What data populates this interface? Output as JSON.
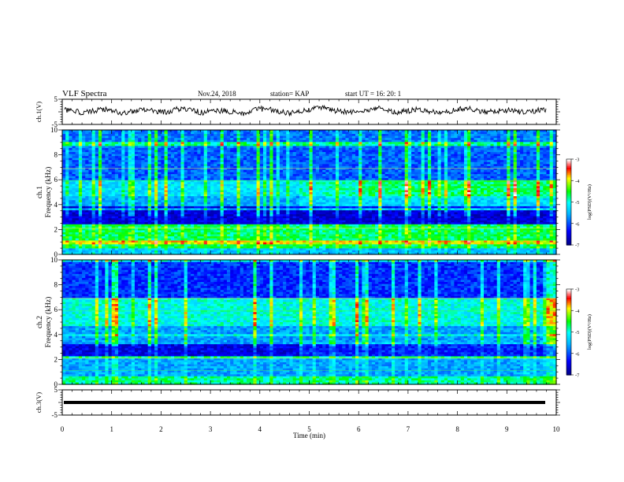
{
  "header": {
    "title": "VLF Spectra",
    "date": "Nov.24, 2018",
    "station": "station= KAP",
    "start_time": "start  UT =   16: 20: 1"
  },
  "chart_data": [
    {
      "type": "line",
      "ylabel": "ch.1(V)",
      "ylim": [
        -5,
        5
      ],
      "yticks": [
        "5",
        "-5"
      ],
      "xlim": [
        0,
        10
      ],
      "series": [
        {
          "values": [
            0.8,
            0.2,
            -0.4,
            0.5,
            1.1,
            0.3,
            -0.6,
            0.1,
            0.9,
            0.4,
            -0.2,
            0.6,
            1.5,
            0.7,
            -0.3,
            0.2,
            0.5,
            0.0,
            -0.8,
            0.4,
            1.2,
            0.9,
            0.1,
            -0.5,
            0.3,
            0.8,
            1.9,
            1.0,
            0.2,
            -0.4,
            0.0,
            0.7,
            1.3,
            0.5,
            -0.2,
            0.4,
            0.9,
            0.3,
            -0.6,
            0.2,
            0.8,
            1.4,
            0.6,
            -0.1,
            0.3,
            0.7,
            0.2,
            -0.3,
            0.5,
            1.0
          ]
        }
      ]
    },
    {
      "type": "heatmap",
      "ylabel": "ch.1\nFrequency (kHz)",
      "ylim": [
        0,
        10
      ],
      "yticks": [
        "0",
        "2",
        "4",
        "6",
        "8",
        "10"
      ],
      "xlim": [
        0,
        10
      ],
      "colorbar": {
        "label": "log(PSD)(V²/Hz)",
        "range": [
          -7,
          -3
        ],
        "ticks": [
          "-3",
          "-4",
          "-5",
          "-6",
          "-7"
        ]
      }
    },
    {
      "type": "heatmap",
      "ylabel": "ch.2\nFrequency (kHz)",
      "ylim": [
        0,
        10
      ],
      "yticks": [
        "0",
        "2",
        "4",
        "6",
        "8",
        "10"
      ],
      "xlim": [
        0,
        10
      ],
      "colorbar": {
        "label": "log(PSD)(V²/Hz)",
        "range": [
          -7,
          -3
        ],
        "ticks": [
          "-3",
          "-4",
          "-5",
          "-6",
          "-7"
        ]
      }
    },
    {
      "type": "line",
      "ylabel": "ch.3(V)",
      "ylim": [
        -5,
        5
      ],
      "yticks": [
        "5",
        "-5"
      ],
      "xlim": [
        0,
        10
      ],
      "series": [
        {
          "values": [
            0.0,
            0.0
          ]
        }
      ]
    }
  ],
  "xaxis": {
    "label": "Time  (min)",
    "ticks": [
      "0",
      "1",
      "2",
      "3",
      "4",
      "5",
      "6",
      "7",
      "8",
      "9",
      "10"
    ]
  },
  "colors": {
    "colormap": [
      "#000080",
      "#0000ff",
      "#00ffff",
      "#00ff00",
      "#ffff00",
      "#ff0000",
      "#ffffff"
    ]
  }
}
